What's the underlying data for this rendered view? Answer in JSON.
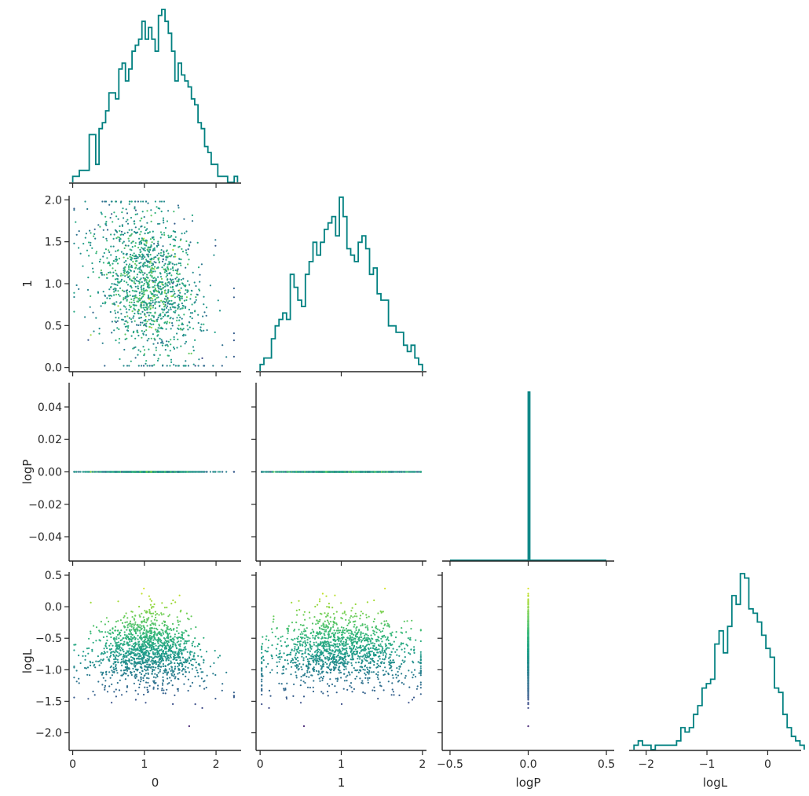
{
  "chart_data": {
    "type": "corner_plot",
    "variables": [
      "0",
      "1",
      "logP",
      "logL"
    ],
    "axis_labels": {
      "x": [
        "0",
        "1",
        "logP",
        "logL"
      ],
      "y": [
        "1",
        "logP",
        "logL"
      ]
    },
    "ranges": {
      "0": [
        -0.05,
        2.35
      ],
      "1": [
        -0.05,
        2.05
      ],
      "logP": [
        -0.55,
        0.55
      ],
      "logL": [
        -2.28,
        0.55
      ]
    },
    "ticks": {
      "0": [
        0,
        1,
        2
      ],
      "1": [
        0,
        1,
        2
      ],
      "1_y": [
        0.0,
        0.5,
        1.0,
        1.5,
        2.0
      ],
      "logP_x": [
        -0.5,
        0.0,
        0.5
      ],
      "logP_y": [
        -0.04,
        -0.02,
        0.0,
        0.02,
        0.04
      ],
      "logL": [
        -2,
        -1,
        0
      ],
      "logL_y": [
        -2.0,
        -1.5,
        -1.0,
        -0.5,
        0.0,
        0.5
      ]
    },
    "tick_labels": {
      "0": [
        "0",
        "1",
        "2"
      ],
      "1": [
        "0",
        "1",
        "2"
      ],
      "1_y": [
        "0.0",
        "0.5",
        "1.0",
        "1.5",
        "2.0"
      ],
      "logP_x": [
        "−0.5",
        "0.0",
        "0.5"
      ],
      "logP_y": [
        "−0.04",
        "−0.02",
        "0.00",
        "0.02",
        "0.04"
      ],
      "logL": [
        "−2",
        "−1",
        "0"
      ],
      "logL_y": [
        "−2.0",
        "−1.5",
        "−1.0",
        "−0.5",
        "0.0",
        "0.5"
      ]
    },
    "logP_y_range": [
      -0.055,
      0.055
    ],
    "histograms": {
      "0": {
        "bins": [
          0.0,
          2.3
        ],
        "counts": [
          1,
          1,
          2,
          2,
          2,
          8,
          8,
          3,
          9,
          10,
          12,
          15,
          15,
          14,
          19,
          20,
          17,
          19,
          22,
          23,
          24,
          27,
          24,
          26,
          24,
          22,
          28,
          29,
          27,
          25,
          22,
          17,
          20,
          18,
          17,
          16,
          14,
          13,
          10,
          9,
          6,
          5,
          3,
          3,
          1,
          1,
          1,
          0,
          0,
          1
        ]
      },
      "1": {
        "bins": [
          0.0,
          2.0
        ],
        "counts": [
          1,
          2,
          2,
          5,
          7,
          8,
          9,
          8,
          15,
          13,
          11,
          10,
          15,
          17,
          20,
          18,
          20,
          22,
          23,
          24,
          21,
          27,
          24,
          19,
          18,
          17,
          20,
          21,
          19,
          15,
          16,
          12,
          11,
          11,
          7,
          7,
          6,
          6,
          4,
          3,
          4,
          2,
          1
        ]
      },
      "logP": {
        "bins": [
          -0.5,
          0.5
        ],
        "counts": [
          0,
          0,
          0,
          0,
          0,
          0,
          0,
          0,
          0,
          0,
          0,
          0,
          0,
          0,
          0,
          0,
          0,
          0,
          0,
          0,
          0,
          0,
          0,
          0,
          0,
          0,
          0,
          0,
          0,
          0,
          0,
          0,
          0,
          0,
          0,
          0,
          0,
          0,
          0,
          0,
          0,
          0,
          0,
          0,
          0,
          0,
          0,
          0,
          0,
          0,
          1,
          0,
          0,
          0,
          0,
          0,
          0,
          0,
          0,
          0,
          0,
          0,
          0,
          0,
          0,
          0,
          0,
          0,
          0,
          0,
          0,
          0,
          0,
          0,
          0,
          0,
          0,
          0,
          0,
          0,
          0,
          0,
          0,
          0,
          0,
          0,
          0,
          0,
          0,
          0,
          0,
          0,
          0,
          0,
          0,
          0,
          0,
          0,
          0,
          0
        ]
      },
      "logL": {
        "bins": [
          -2.2,
          0.6
        ],
        "counts": [
          1,
          2,
          1,
          1,
          0,
          1,
          1,
          1,
          1,
          1,
          2,
          5,
          4,
          5,
          8,
          10,
          14,
          15,
          16,
          24,
          27,
          22,
          28,
          35,
          33,
          40,
          39,
          32,
          31,
          29,
          26,
          23,
          21,
          14,
          13,
          8,
          5,
          3,
          2,
          1
        ]
      }
    },
    "scatter_color_by": "logL",
    "colormap": "viridis",
    "colors": {
      "histogram": "#008080",
      "axes": "#262626",
      "colormap_low": "#440154",
      "colormap_mid": "#21918c",
      "colormap_high": "#fde725"
    }
  }
}
